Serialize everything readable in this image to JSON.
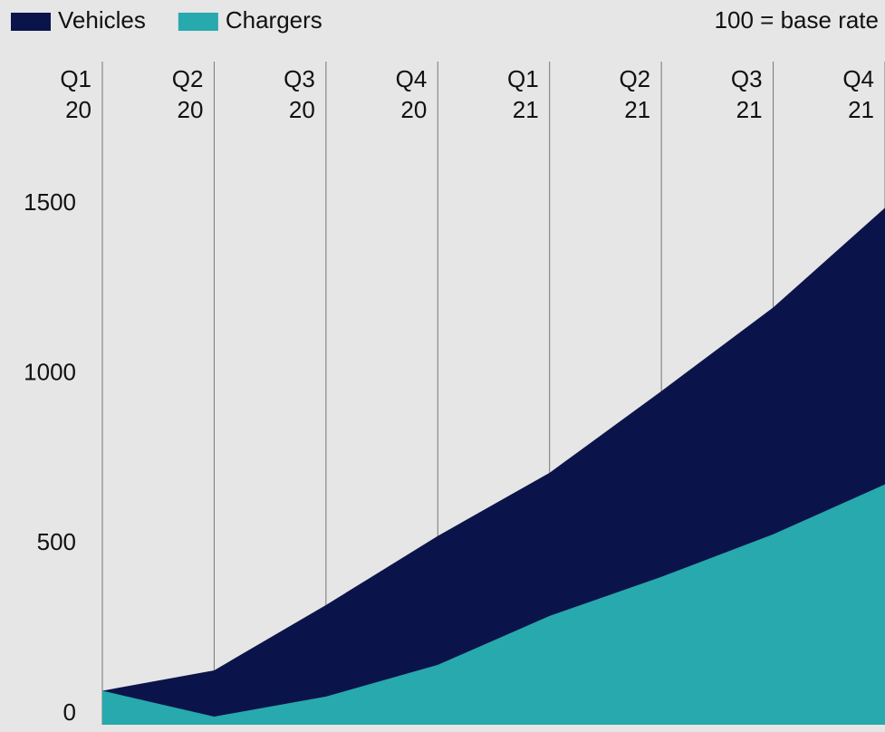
{
  "chart_data": {
    "type": "area",
    "annotation": "100 = base rate",
    "categories": [
      "Q1 20",
      "Q2 20",
      "Q3 20",
      "Q4 20",
      "Q1 21",
      "Q2 21",
      "Q3 21",
      "Q4 21"
    ],
    "series": [
      {
        "name": "Vehicles",
        "color": "#0b144a",
        "values": [
          100,
          160,
          352,
          555,
          741,
          981,
          1227,
          1520
        ]
      },
      {
        "name": "Chargers",
        "color": "#27a9ad",
        "values": [
          100,
          24,
          83,
          176,
          320,
          435,
          560,
          707
        ]
      }
    ],
    "ylim": [
      0,
      1950
    ],
    "yticks": [
      0,
      500,
      1000,
      1500
    ],
    "grid": true
  }
}
